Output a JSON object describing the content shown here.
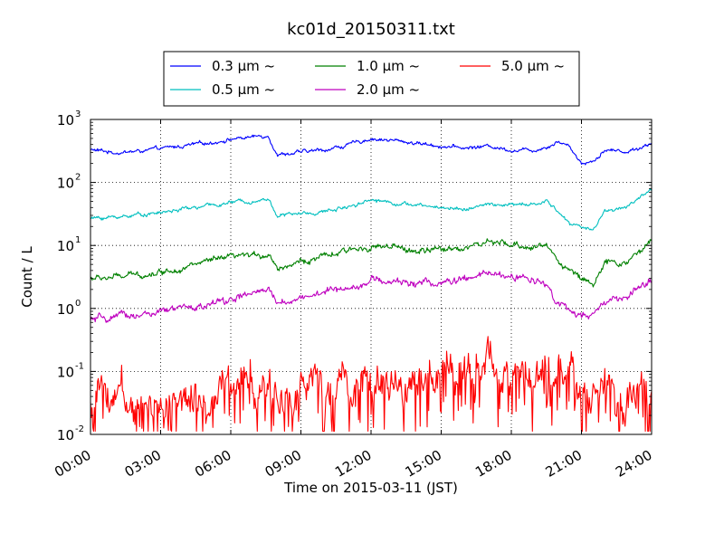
{
  "chart_data": {
    "type": "line",
    "title": "kc01d_20150311.txt",
    "xlabel": "Time on 2015-03-11 (JST)",
    "ylabel": "Count / L",
    "yscale": "log",
    "ylim": [
      0.01,
      1000
    ],
    "xlim": [
      "00:00",
      "24:00"
    ],
    "x_ticks": [
      "00:00",
      "03:00",
      "06:00",
      "09:00",
      "12:00",
      "15:00",
      "18:00",
      "21:00",
      "24:00"
    ],
    "y_ticks": [
      {
        "base": "10",
        "exp": "-2"
      },
      {
        "base": "10",
        "exp": "-1"
      },
      {
        "base": "10",
        "exp": "0"
      },
      {
        "base": "10",
        "exp": "1"
      },
      {
        "base": "10",
        "exp": "2"
      },
      {
        "base": "10",
        "exp": "3"
      }
    ],
    "grid": true,
    "legend_position": "top-center",
    "legend": [
      {
        "label": "0.3 μm ~",
        "color": "#0000ff"
      },
      {
        "label": "1.0 μm ~",
        "color": "#008000"
      },
      {
        "label": "5.0 μm ~",
        "color": "#ff0000"
      },
      {
        "label": "0.5 μm ~",
        "color": "#00bfbf"
      },
      {
        "label": "2.0 μm ~",
        "color": "#bf00bf"
      }
    ],
    "x_hours": [
      0,
      1,
      2,
      3,
      4,
      5,
      6,
      7,
      7.6,
      8,
      9,
      10,
      11,
      12,
      13,
      14,
      15,
      16,
      17,
      18,
      19,
      19.5,
      20,
      20.5,
      21,
      21.5,
      22,
      23,
      24
    ],
    "series": [
      {
        "name": "0.3 μm ~",
        "color": "#0000ff",
        "noise": 0.03,
        "values": [
          330,
          300,
          310,
          340,
          380,
          420,
          490,
          530,
          560,
          280,
          300,
          330,
          390,
          500,
          460,
          420,
          380,
          350,
          380,
          330,
          330,
          370,
          450,
          380,
          200,
          220,
          330,
          310,
          420
        ]
      },
      {
        "name": "0.5 μm ~",
        "color": "#00bfbf",
        "noise": 0.03,
        "values": [
          27,
          28,
          31,
          33,
          38,
          42,
          48,
          52,
          55,
          30,
          32,
          34,
          42,
          54,
          48,
          43,
          40,
          38,
          44,
          44,
          44,
          50,
          35,
          22,
          20,
          18,
          35,
          42,
          80
        ]
      },
      {
        "name": "1.0 μm ~",
        "color": "#008000",
        "noise": 0.05,
        "values": [
          3,
          3.1,
          3.4,
          3.8,
          4.6,
          5.5,
          6.3,
          6.8,
          7.5,
          4.5,
          5.5,
          6.5,
          8,
          10,
          9,
          8,
          8.5,
          9.5,
          11,
          10,
          9.5,
          10,
          6,
          4,
          3,
          2.6,
          5,
          5.5,
          12
        ]
      },
      {
        "name": "2.0 μm ~",
        "color": "#bf00bf",
        "noise": 0.06,
        "values": [
          0.65,
          0.7,
          0.8,
          0.85,
          1.0,
          1.1,
          1.4,
          1.7,
          1.9,
          1.2,
          1.5,
          1.8,
          2.2,
          2.8,
          2.6,
          2.6,
          2.5,
          2.8,
          3.5,
          3.2,
          2.8,
          2.7,
          1.2,
          0.9,
          0.75,
          0.7,
          1.3,
          1.5,
          2.8
        ]
      },
      {
        "name": "5.0 μm ~",
        "color": "#ff0000",
        "noise": 0.32,
        "values": [
          0.035,
          0.035,
          0.04,
          0.045,
          0.05,
          0.055,
          0.06,
          0.065,
          0.06,
          0.04,
          0.05,
          0.06,
          0.07,
          0.085,
          0.08,
          0.07,
          0.08,
          0.1,
          0.13,
          0.11,
          0.09,
          0.08,
          0.06,
          0.05,
          0.045,
          0.05,
          0.045,
          0.05,
          0.06
        ]
      }
    ]
  }
}
